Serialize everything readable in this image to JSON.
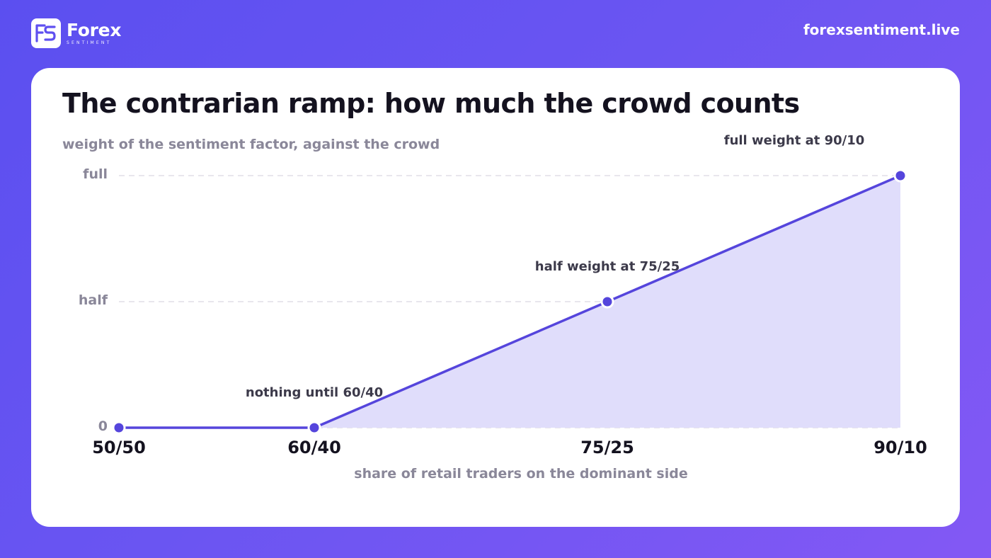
{
  "header": {
    "logo_text": "FS",
    "brand_name": "Forex",
    "brand_sub": "SENTIMENT",
    "site_url": "forexsentiment.live"
  },
  "colors": {
    "background": "#6552f2",
    "accent": "#5545dc",
    "fill": "#e0ddfb",
    "title": "#14121f",
    "muted": "#8a8799"
  },
  "chart_data": {
    "type": "area",
    "title": "The contrarian ramp: how much the crowd counts",
    "ylabel": "weight of the sentiment factor, against the crowd",
    "xlabel": "share of retail traders on the dominant side",
    "x_ticks": [
      "50/50",
      "60/40",
      "75/25",
      "90/10"
    ],
    "y_ticks": [
      "0",
      "half",
      "full"
    ],
    "x": [
      50,
      60,
      75,
      90
    ],
    "y": [
      0,
      0,
      0.5,
      1
    ],
    "xlim": [
      50,
      90
    ],
    "ylim": [
      0,
      1
    ],
    "grid": "horizontal dashed",
    "annotations": [
      {
        "text": "nothing until 60/40",
        "x": 60,
        "y": 0
      },
      {
        "text": "half weight at 75/25",
        "x": 75,
        "y": 0.5
      },
      {
        "text": "full weight at 90/10",
        "x": 90,
        "y": 1
      }
    ]
  }
}
